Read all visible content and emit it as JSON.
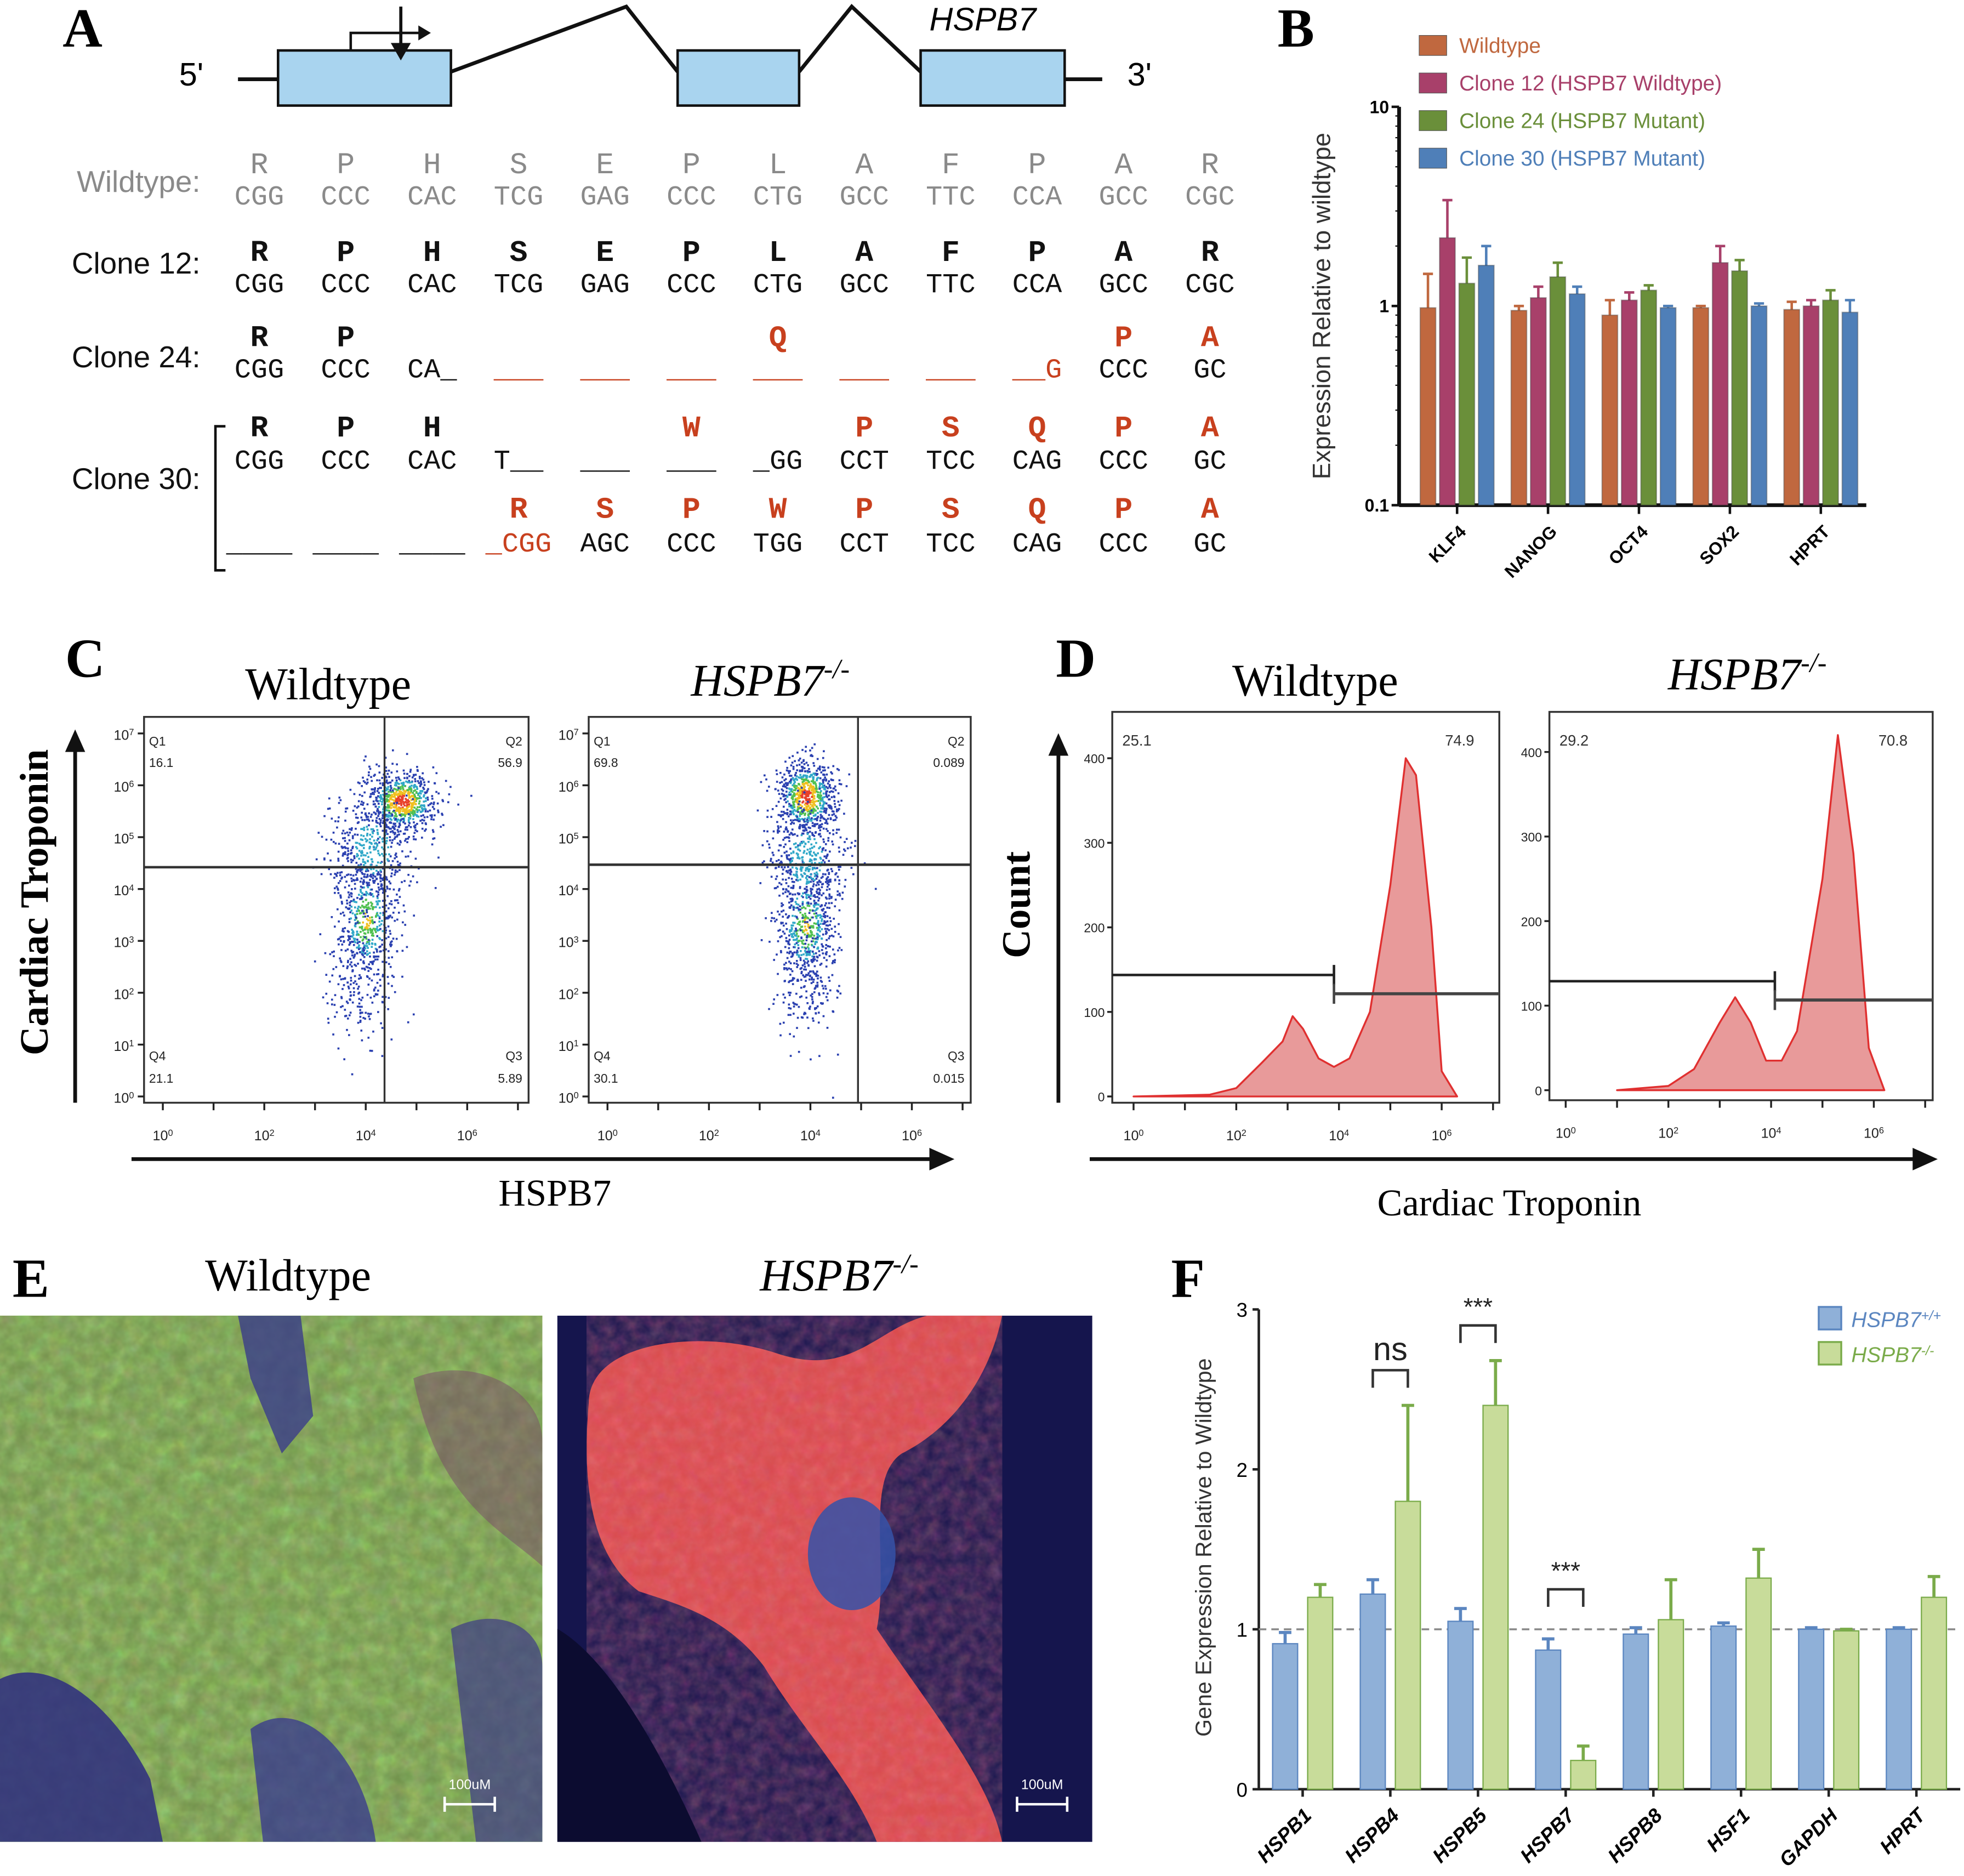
{
  "panel_labels": {
    "a": "A",
    "b": "B",
    "c": "C",
    "d": "D",
    "e": "E",
    "f": "F"
  },
  "panel_a": {
    "gene_name": "HSPB7",
    "five_prime": "5'",
    "three_prime": "3'",
    "rows": [
      {
        "label": "Wildtype:",
        "color": "#8a8a8a",
        "lines": [
          {
            "aa": [
              "R",
              "P",
              "H",
              "S",
              "E",
              "P",
              "L",
              "A",
              "F",
              "P",
              "A",
              "R"
            ],
            "codons": [
              "CGG",
              "CCC",
              "CAC",
              "TCG",
              "GAG",
              "CCC",
              "CTG",
              "GCC",
              "TTC",
              "CCA",
              "GCC",
              "CGC"
            ],
            "red_aa": [],
            "red_codons": []
          }
        ]
      },
      {
        "label": "Clone 12:",
        "color": "#111111",
        "lines": [
          {
            "aa": [
              "R",
              "P",
              "H",
              "S",
              "E",
              "P",
              "L",
              "A",
              "F",
              "P",
              "A",
              "R"
            ],
            "codons": [
              "CGG",
              "CCC",
              "CAC",
              "TCG",
              "GAG",
              "CCC",
              "CTG",
              "GCC",
              "TTC",
              "CCA",
              "GCC",
              "CGC"
            ],
            "red_aa": [],
            "red_codons": []
          }
        ]
      },
      {
        "label": "Clone 24:",
        "color": "#111111",
        "lines": [
          {
            "aa": [
              "R",
              "P",
              "",
              "",
              "",
              "",
              "Q",
              "",
              "",
              "",
              "P",
              "A"
            ],
            "codons": [
              "CGG",
              "CCC",
              "CA_",
              "___",
              "___",
              "___",
              "___",
              "___",
              "___",
              "__G",
              "CCC",
              "GC"
            ],
            "red_aa": [
              6,
              10,
              11
            ],
            "red_codons": [
              3,
              4,
              5,
              6,
              7,
              8,
              9
            ]
          }
        ]
      },
      {
        "label": "Clone 30:",
        "color": "#111111",
        "lines": [
          {
            "aa": [
              "R",
              "P",
              "H",
              "",
              "",
              "W",
              "",
              "P",
              "S",
              "Q",
              "P",
              "A"
            ],
            "codons": [
              "CGG",
              "CCC",
              "CAC",
              "T__",
              "___",
              "___",
              "_GG",
              "CCT",
              "TCC",
              "CAG",
              "CCC",
              "GC"
            ],
            "red_aa": [
              5,
              7,
              8,
              9,
              10,
              11
            ],
            "red_codons": []
          },
          {
            "aa": [
              "",
              "",
              "",
              "R",
              "S",
              "P",
              "W",
              "P",
              "S",
              "Q",
              "P",
              "A"
            ],
            "codons": [
              "____",
              "____",
              "____",
              "_CGG",
              "AGC",
              "CCC",
              "TGG",
              "CCT",
              "TCC",
              "CAG",
              "CCC",
              "GC"
            ],
            "red_aa": [
              3,
              4,
              5,
              6,
              7,
              8,
              9,
              10,
              11
            ],
            "red_codons": [
              3
            ]
          }
        ]
      }
    ],
    "mutation_color": "#c8401e"
  },
  "chart_data": [
    {
      "id": "B",
      "type": "bar",
      "yscale": "log",
      "ylim": [
        0.1,
        10
      ],
      "ylabel": "Expression Relative to wildtype",
      "xlabel": "",
      "yticks": [
        "0.1",
        "1",
        "10"
      ],
      "categories": [
        "KLF4",
        "NANOG",
        "OCT4",
        "SOX2",
        "HPRT"
      ],
      "legend_placement": "top",
      "series": [
        {
          "name": "Wildtype",
          "color": "#c0683f",
          "values": [
            0.98,
            0.95,
            0.9,
            0.98,
            0.96
          ],
          "err_top": [
            1.45,
            1.0,
            1.07,
            1.0,
            1.05
          ]
        },
        {
          "name": "Clone 12 (HSPB7 Wildtype)",
          "color": "#a8406a",
          "values": [
            2.2,
            1.1,
            1.07,
            1.65,
            1.0
          ],
          "err_top": [
            3.4,
            1.25,
            1.17,
            2.0,
            1.07
          ]
        },
        {
          "name": "Clone 24 (HSPB7 Mutant)",
          "color": "#6a8f3a",
          "values": [
            1.3,
            1.4,
            1.2,
            1.5,
            1.07
          ],
          "err_top": [
            1.75,
            1.65,
            1.27,
            1.7,
            1.2
          ]
        },
        {
          "name": "Clone 30 (HSPB7 Mutant)",
          "color": "#4f7fb8",
          "values": [
            1.6,
            1.15,
            0.98,
            1.0,
            0.93
          ],
          "err_top": [
            2.0,
            1.25,
            1.0,
            1.03,
            1.07
          ]
        }
      ]
    },
    {
      "id": "C",
      "type": "scatter",
      "subtype": "flow-cytometry density",
      "xlabel": "HSPB7",
      "ylabel": "Cardiac Troponin",
      "xscale": "log",
      "yscale": "log",
      "xticks": [
        "10^0",
        "10^2",
        "10^4",
        "10^6"
      ],
      "yticks": [
        "10^0",
        "10^1",
        "10^2",
        "10^3",
        "10^4",
        "10^5",
        "10^6",
        "10^7"
      ],
      "plots": [
        {
          "title": "Wildtype",
          "quadrants": {
            "Q1": "16.1",
            "Q2": "56.9",
            "Q3": "5.89",
            "Q4": "21.1"
          }
        },
        {
          "title": "HSPB7",
          "title_sup": "-/-",
          "quadrants": {
            "Q1": "69.8",
            "Q2": "0.089",
            "Q3": "0.015",
            "Q4": "30.1"
          }
        }
      ]
    },
    {
      "id": "D",
      "type": "area",
      "subtype": "histogram",
      "xlabel": "Cardiac Troponin",
      "ylabel": "Count",
      "xscale": "log",
      "ylim": [
        0,
        420
      ],
      "xticks": [
        "10^0",
        "10^2",
        "10^4",
        "10^6"
      ],
      "yticks": [
        "0",
        "100",
        "200",
        "300",
        "400"
      ],
      "fill_color": "#e89a9a",
      "line_color": "#e03030",
      "plots": [
        {
          "title": "Wildtype",
          "gate_left": "25.1",
          "gate_right": "74.9",
          "x": [
            1,
            30,
            100,
            316,
            800,
            1250,
            2000,
            4000,
            8000,
            16000,
            40000,
            100000,
            200000,
            316000,
            630000,
            1000000,
            2000000
          ],
          "y": [
            0,
            2,
            10,
            40,
            65,
            95,
            80,
            45,
            35,
            45,
            100,
            250,
            400,
            380,
            200,
            30,
            0
          ]
        },
        {
          "title": "HSPB7",
          "title_sup": "-/-",
          "gate_left": "29.2",
          "gate_right": "70.8",
          "x": [
            10,
            100,
            316,
            1000,
            2000,
            4000,
            8000,
            16000,
            32000,
            100000,
            200000,
            400000,
            800000,
            1600000
          ],
          "y": [
            0,
            5,
            25,
            80,
            110,
            80,
            35,
            35,
            70,
            250,
            420,
            280,
            50,
            0
          ]
        }
      ]
    },
    {
      "id": "F",
      "type": "bar",
      "ylim": [
        0,
        3
      ],
      "yticks": [
        "0",
        "1",
        "2",
        "3"
      ],
      "ylabel": "Gene Expression Relative to Wildtype",
      "xlabel": "",
      "reference_line": 1,
      "categories": [
        "HSPB1",
        "HSPB4",
        "HSPB5",
        "HSPB7",
        "HSPB8",
        "HSF1",
        "GAPDH",
        "HPRT"
      ],
      "legend_placement": "top-right",
      "series": [
        {
          "name": "HSPB7",
          "name_sup": "+/+",
          "color": "#8fb0d8",
          "edge": "#5b86c0",
          "values": [
            0.91,
            1.22,
            1.05,
            0.87,
            0.97,
            1.02,
            1.0,
            1.0
          ],
          "err_top": [
            0.98,
            1.31,
            1.13,
            0.94,
            1.01,
            1.04,
            1.01,
            1.01
          ]
        },
        {
          "name": "HSPB7",
          "name_sup": "-/-",
          "color": "#c8dc9a",
          "edge": "#7aab4a",
          "values": [
            1.2,
            1.8,
            2.4,
            0.18,
            1.06,
            1.32,
            0.99,
            1.2
          ],
          "err_top": [
            1.28,
            2.4,
            2.68,
            0.27,
            1.31,
            1.5,
            1.0,
            1.33
          ]
        }
      ],
      "annotations": [
        {
          "category": "HSPB4",
          "text": "ns"
        },
        {
          "category": "HSPB5",
          "text": "***"
        },
        {
          "category": "HSPB7",
          "text": "***"
        }
      ]
    }
  ],
  "panel_e": {
    "titles": [
      {
        "text": "Wildtype"
      },
      {
        "text": "HSPB7",
        "sup": "-/-"
      }
    ],
    "scale_bar_label": "100uM"
  }
}
